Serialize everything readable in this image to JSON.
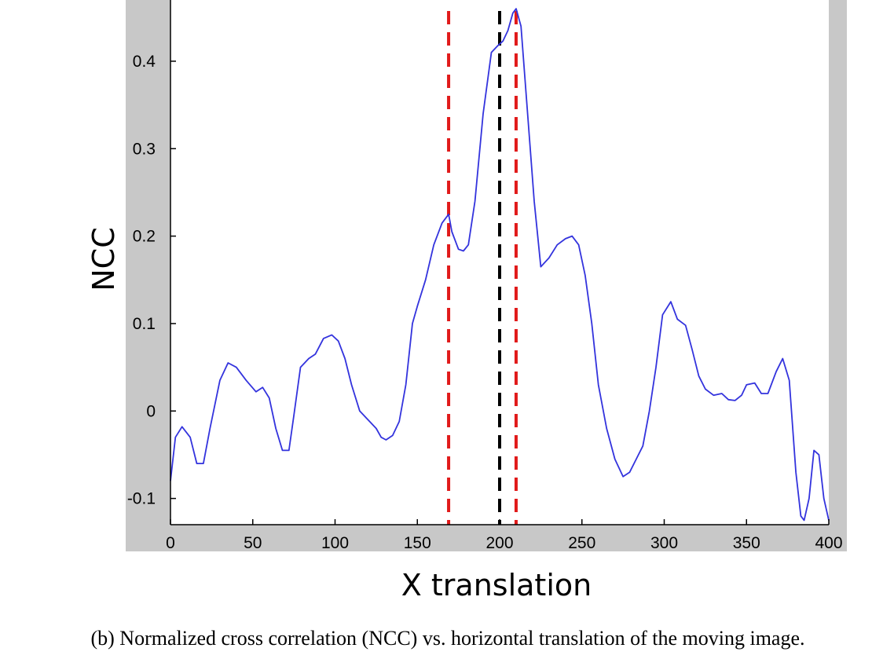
{
  "chart_data": {
    "type": "line",
    "xlabel": "X translation",
    "ylabel": "NCC",
    "caption": "(b) Normalized cross correlation (NCC) vs. horizontal translation of the moving image.",
    "xlim": [
      0,
      400
    ],
    "ylim": [
      -0.13,
      0.47
    ],
    "xticks": [
      0,
      50,
      100,
      150,
      200,
      250,
      300,
      350,
      400
    ],
    "xtick_labels": [
      "0",
      "50",
      "100",
      "150",
      "200",
      "250",
      "300",
      "350",
      "400"
    ],
    "yticks": [
      -0.1,
      0,
      0.1,
      0.2,
      0.3,
      0.4
    ],
    "ytick_labels": [
      "-0.1",
      "0",
      "0.1",
      "0.2",
      "0.3",
      "0.4"
    ],
    "grid": false,
    "series": [
      {
        "color": "#3333dd",
        "x": [
          0,
          3,
          7,
          12,
          16,
          20,
          24,
          30,
          35,
          40,
          46,
          52,
          56,
          60,
          64,
          68,
          72,
          75,
          79,
          84,
          88,
          93,
          98,
          102,
          106,
          110,
          115,
          120,
          125,
          128,
          131,
          135,
          139,
          143,
          147,
          150,
          155,
          160,
          165,
          169,
          171,
          175,
          178,
          181,
          185,
          190,
          195,
          199,
          202,
          205,
          208,
          210,
          213,
          217,
          221,
          225,
          230,
          235,
          240,
          244,
          248,
          252,
          256,
          260,
          265,
          270,
          275,
          279,
          283,
          287,
          291,
          295,
          299,
          304,
          308,
          313,
          317,
          321,
          325,
          330,
          335,
          339,
          343,
          347,
          350,
          355,
          359,
          363,
          368,
          372,
          376,
          380,
          383,
          385,
          388,
          391,
          394,
          397,
          400
        ],
        "y": [
          -0.08,
          -0.03,
          -0.018,
          -0.03,
          -0.06,
          -0.06,
          -0.02,
          0.035,
          0.055,
          0.05,
          0.035,
          0.022,
          0.027,
          0.015,
          -0.02,
          -0.045,
          -0.045,
          -0.005,
          0.05,
          0.06,
          0.065,
          0.083,
          0.087,
          0.08,
          0.06,
          0.03,
          0.0,
          -0.01,
          -0.02,
          -0.03,
          -0.033,
          -0.028,
          -0.012,
          0.03,
          0.1,
          0.12,
          0.15,
          0.19,
          0.215,
          0.225,
          0.205,
          0.185,
          0.183,
          0.19,
          0.24,
          0.34,
          0.41,
          0.418,
          0.423,
          0.435,
          0.455,
          0.46,
          0.44,
          0.34,
          0.24,
          0.165,
          0.175,
          0.19,
          0.197,
          0.2,
          0.19,
          0.155,
          0.1,
          0.03,
          -0.02,
          -0.055,
          -0.075,
          -0.07,
          -0.055,
          -0.04,
          0.0,
          0.05,
          0.11,
          0.125,
          0.105,
          0.098,
          0.07,
          0.04,
          0.025,
          0.018,
          0.02,
          0.013,
          0.012,
          0.018,
          0.03,
          0.032,
          0.02,
          0.02,
          0.045,
          0.06,
          0.035,
          -0.07,
          -0.12,
          -0.125,
          -0.1,
          -0.045,
          -0.05,
          -0.1,
          -0.125
        ]
      }
    ],
    "reference_lines": [
      {
        "x": 169,
        "color": "#e11a1a",
        "style": "dashed"
      },
      {
        "x": 200,
        "color": "#000000",
        "style": "dashed"
      },
      {
        "x": 210,
        "color": "#e11a1a",
        "style": "dashed"
      }
    ]
  }
}
